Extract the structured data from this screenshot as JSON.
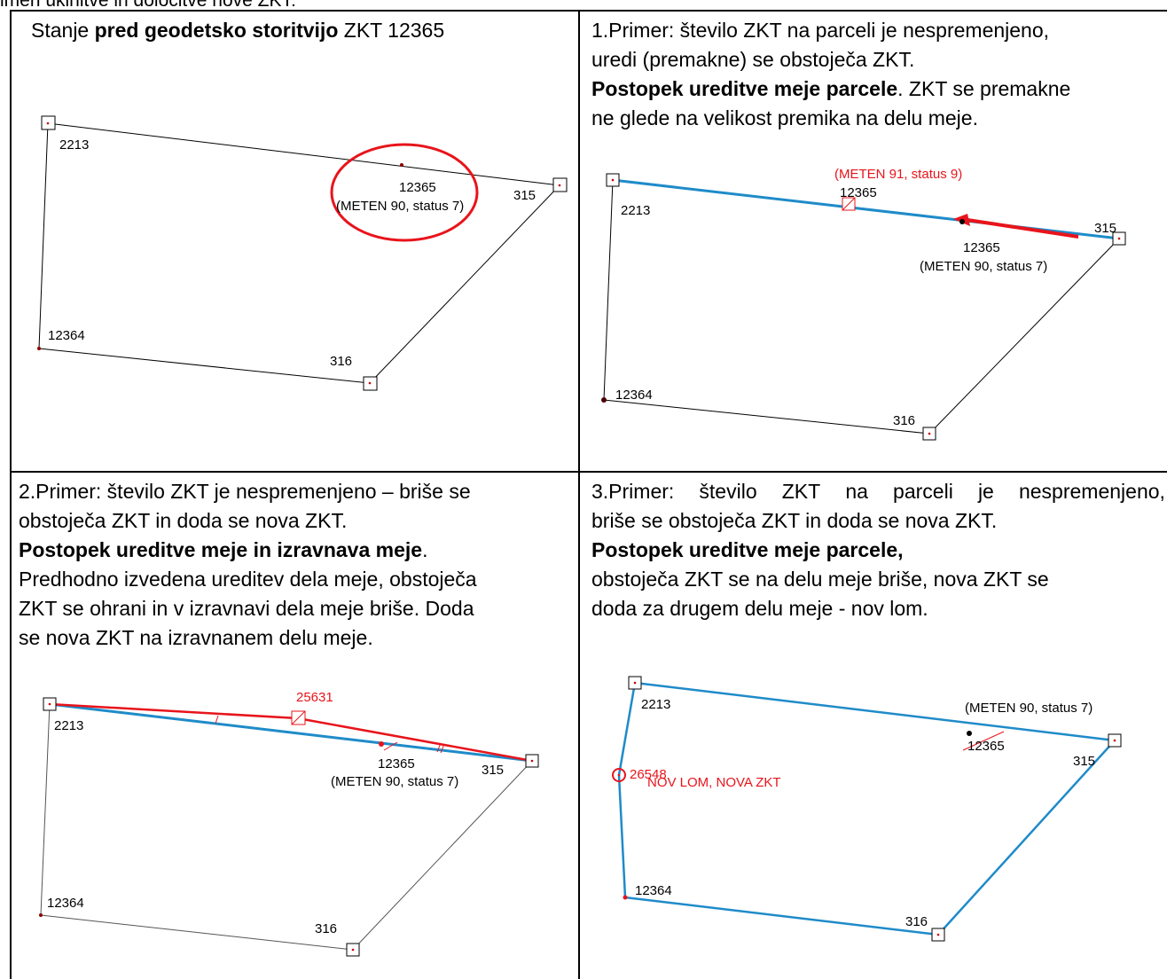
{
  "top_fragment": "imeri ukinitve in določitve nove ZKT:",
  "cell1": {
    "title_pre": "Stanje ",
    "title_bold": "pred geodetsko storitvijo",
    "title_post": " ZKT 12365",
    "labels": {
      "p2213": "2213",
      "p12365": "12365",
      "meten": "(METEN 90, status 7)",
      "p315": "315",
      "p12364": "12364",
      "p316": "316"
    }
  },
  "cell2": {
    "line1": "1.Primer: število ZKT na parceli je nespremenjeno,",
    "line2": "uredi (premakne) se obstoječa ZKT.",
    "line3_bold": "Postopek ureditve meje parcele",
    "line3_rest": ". ZKT se premakne",
    "line4": "ne glede na velikost premika na delu meje.",
    "labels": {
      "red_meten": "(METEN 91, status 9)",
      "p12365_new": "12365",
      "p2213": "2213",
      "p315": "315",
      "p12365_old": "12365",
      "meten": "(METEN 90, status 7)",
      "p12364": "12364",
      "p316": "316"
    }
  },
  "cell3": {
    "line1": "2.Primer: število ZKT je nespremenjeno – briše se",
    "line2": "obstoječa ZKT in doda se nova ZKT.",
    "line3_bold": "Postopek ureditve meje in izravnava meje",
    "line3_rest": ".",
    "line4": "Predhodno izvedena ureditev dela meje, obstoječa",
    "line5": "ZKT se ohrani in v izravnavi dela meje briše. Doda",
    "line6": "se nova ZKT na izravnanem delu meje.",
    "labels": {
      "p25631": "25631",
      "p2213": "2213",
      "p12365": "12365",
      "p315": "315",
      "meten": "(METEN 90, status 7)",
      "p12364": "12364",
      "p316": "316"
    }
  },
  "cell4": {
    "line1_words": [
      "3.Primer:",
      "število",
      "ZKT",
      "na",
      "parceli",
      "je",
      "nespremenjeno,"
    ],
    "line2": "briše se obstoječa ZKT in doda se nova ZKT.",
    "line3_bold": "Postopek ureditve meje parcele,",
    "line4": "obstoječa ZKT se na delu meje briše, nova ZKT se",
    "line5": "doda za drugem delu meje - nov lom.",
    "labels": {
      "p2213": "2213",
      "meten": "(METEN 90, status 7)",
      "p12365": "12365",
      "p315": "315",
      "p26548": "26548",
      "nov_lom": "NOV LOM, NOVA ZKT",
      "p12364": "12364",
      "p316": "316"
    }
  },
  "colors": {
    "blue": "#1f8bc9",
    "red": "#e8141b",
    "grey": "#555555",
    "dark_red": "#8b0000"
  }
}
